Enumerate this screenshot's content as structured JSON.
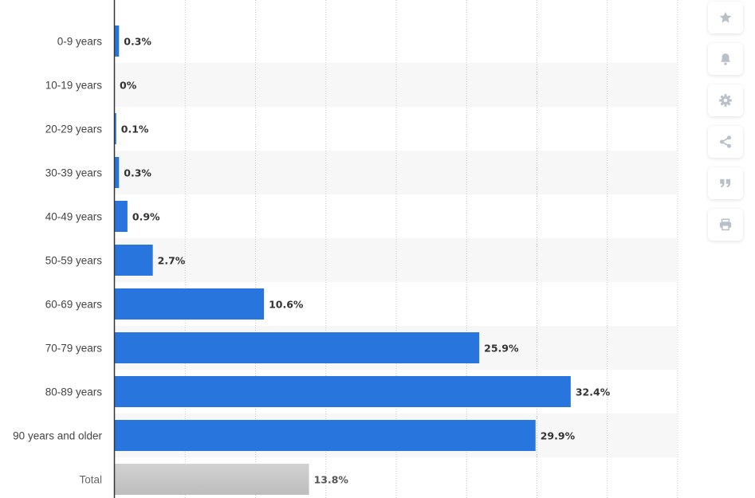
{
  "chart_data": {
    "type": "bar",
    "orientation": "horizontal",
    "categories": [
      "0-9 years",
      "10-19 years",
      "20-29 years",
      "30-39 years",
      "40-49 years",
      "50-59 years",
      "60-69 years",
      "70-79 years",
      "80-89 years",
      "90 years and older",
      "Total"
    ],
    "values": [
      0.3,
      0,
      0.1,
      0.3,
      0.9,
      2.7,
      10.6,
      25.9,
      32.4,
      29.9,
      13.8
    ],
    "value_labels": [
      "0.3%",
      "0%",
      "0.1%",
      "0.3%",
      "0.9%",
      "2.7%",
      "10.6%",
      "25.9%",
      "32.4%",
      "29.9%",
      "13.8%"
    ],
    "highlight_category": "Total",
    "unit": "%",
    "xlim": [
      0,
      40
    ],
    "grid": true,
    "title": "",
    "xlabel": "",
    "ylabel": "",
    "colors": {
      "bar": "#2876DD",
      "total_bar_top": "#d2d2d2",
      "total_bar_bottom": "#bdbdbd",
      "band": "#f7f7f7",
      "grid": "#c8c8c8",
      "axis": "#333333"
    }
  },
  "toolbar": {
    "buttons": [
      {
        "name": "star-icon",
        "label": "favorite"
      },
      {
        "name": "bell-icon",
        "label": "notification"
      },
      {
        "name": "gear-icon",
        "label": "settings"
      },
      {
        "name": "share-icon",
        "label": "share"
      },
      {
        "name": "quote-icon",
        "label": "cite"
      },
      {
        "name": "print-icon",
        "label": "print"
      }
    ],
    "icon_color": "#b9c0c8"
  }
}
